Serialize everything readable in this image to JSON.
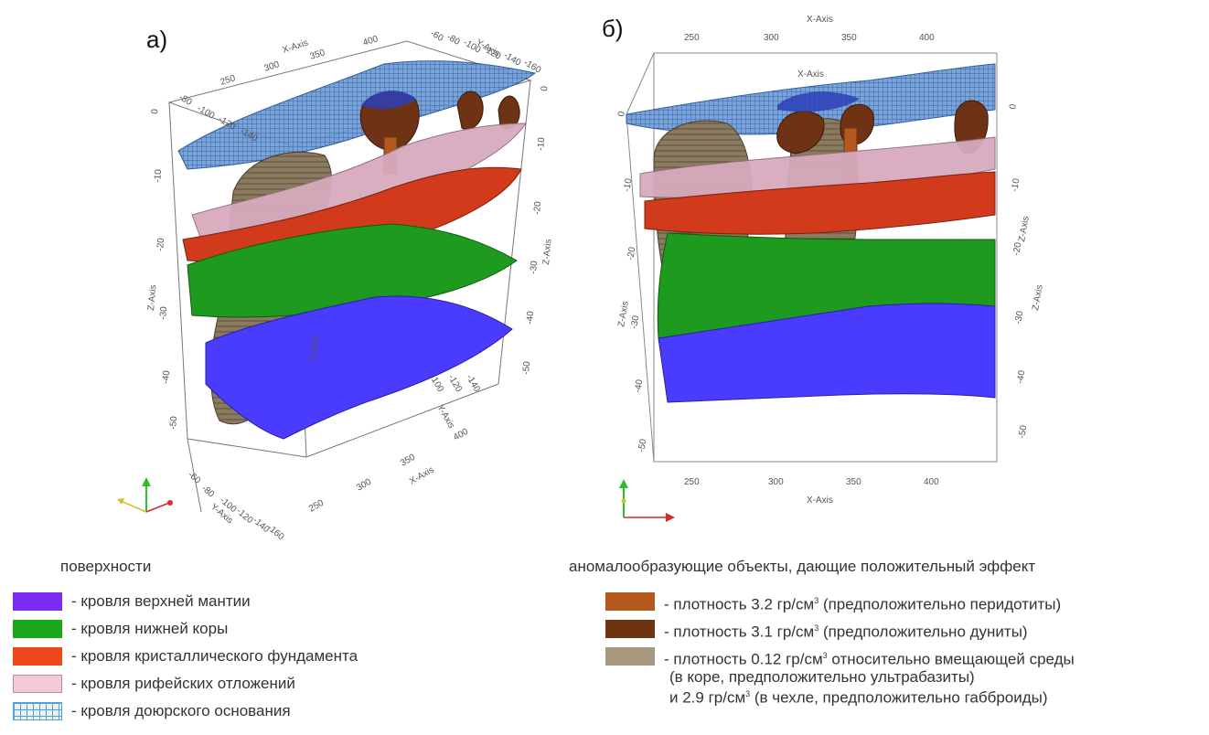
{
  "panels": {
    "a": {
      "letter": "а)",
      "axes": {
        "x_axis_label": "X-Axis",
        "y_axis_label": "Y-Axis",
        "z_axis_label": "Z-Axis",
        "x_ticks_top": [
          "250",
          "300",
          "350",
          "400"
        ],
        "y_ticks_top": [
          "-60",
          "-80",
          "-100",
          "-120",
          "-140",
          "-160"
        ],
        "y_ticks_left": [
          "-80",
          "-100",
          "-120",
          "-140"
        ],
        "z_ticks_left": [
          "0",
          "-10",
          "-20",
          "-30",
          "-40",
          "-50"
        ],
        "z_ticks_right": [
          "0",
          "-10",
          "-20",
          "-30",
          "-40",
          "-50"
        ],
        "x_ticks_bottom": [
          "250",
          "300",
          "350",
          "400"
        ],
        "y_ticks_bottom": [
          "-60",
          "-80",
          "-100",
          "-120",
          "-140",
          "-160"
        ],
        "y_ticks_mid": [
          "-100",
          "-120",
          "-140"
        ]
      }
    },
    "b": {
      "letter": "б)",
      "axes": {
        "x_axis_label": "X-Axis",
        "z_axis_label": "Z-Axis",
        "x_ticks": [
          "250",
          "300",
          "350",
          "400"
        ],
        "z_ticks_left": [
          "0",
          "-10",
          "-20",
          "-30",
          "-40",
          "-50"
        ],
        "z_ticks_right": [
          "0",
          "-10",
          "-20",
          "-30",
          "-40",
          "-50"
        ]
      }
    }
  },
  "legend_surfaces": {
    "title": "поверхности",
    "items": [
      {
        "label": "- кровля верхней мантии",
        "color": "#7b2bf2",
        "pattern": "solid"
      },
      {
        "label": "- кровля нижней коры",
        "color": "#1aa51a",
        "pattern": "solid"
      },
      {
        "label": "- кровля кристаллического фундамента",
        "color": "#f0481a",
        "pattern": "solid"
      },
      {
        "label": "- кровля рифейских отложений",
        "color": "#f4c8d4",
        "pattern": "solid"
      },
      {
        "label": "- кровля доюрского основания",
        "color": "#5aa0d8",
        "pattern": "grid"
      }
    ]
  },
  "legend_objects": {
    "title": "аномалообразующие объекты, дающие положительный эффект",
    "superscript": "3",
    "items": [
      {
        "color": "#b5581e",
        "lines": [
          {
            "before": "- плотность 3.2 гр/см",
            "after": " (предположительно перидотиты)"
          }
        ]
      },
      {
        "color": "#6b3413",
        "lines": [
          {
            "before": "- плотность 3.1 гр/см",
            "after": " (предположительно дуниты)"
          }
        ]
      },
      {
        "color": "#a89880",
        "lines": [
          {
            "before": "- плотность 0.12 гр/см",
            "after": " относительно вмещающей среды"
          },
          {
            "before": "(в коре, предположительно ультрабазиты)",
            "after": ""
          },
          {
            "before": "и 2.9 гр/см",
            "after": " (в чехле, предположительно габброиды)"
          }
        ]
      }
    ]
  },
  "colors": {
    "mantle": "#4a3cff",
    "lower_crust": "#1e9a1e",
    "basement": "#d23a1c",
    "riphean": "#d6aabd",
    "pre_jurassic": "#3a6fb0",
    "body_dark": "#6e3214",
    "body_light": "#8a7a60"
  }
}
